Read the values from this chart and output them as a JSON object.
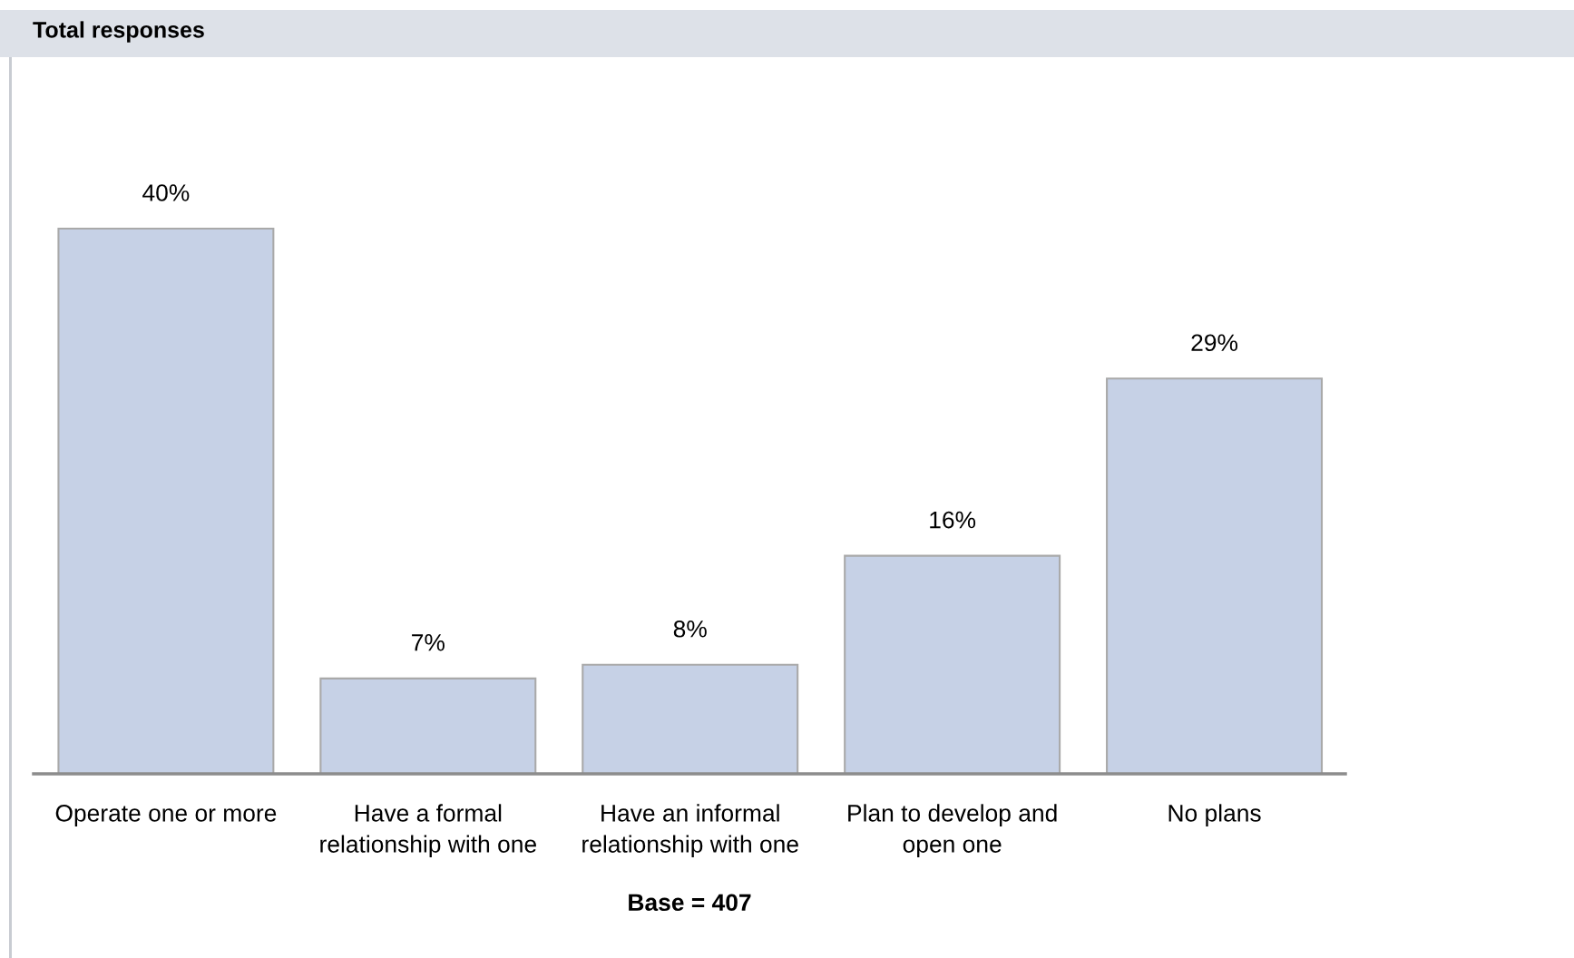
{
  "chart_data": {
    "type": "bar",
    "title": "Total responses",
    "categories": [
      "Operate one or more",
      "Have a formal\nrelationship with one",
      "Have an informal\nrelationship with one",
      "Plan to develop and\nopen one",
      "No plans"
    ],
    "values": [
      40,
      7,
      8,
      16,
      29
    ],
    "value_labels": [
      "40%",
      "7%",
      "8%",
      "16%",
      "29%"
    ],
    "color": "#c6d1e6",
    "annotations": [
      "Base = 407"
    ],
    "grid": false,
    "legend": false
  }
}
